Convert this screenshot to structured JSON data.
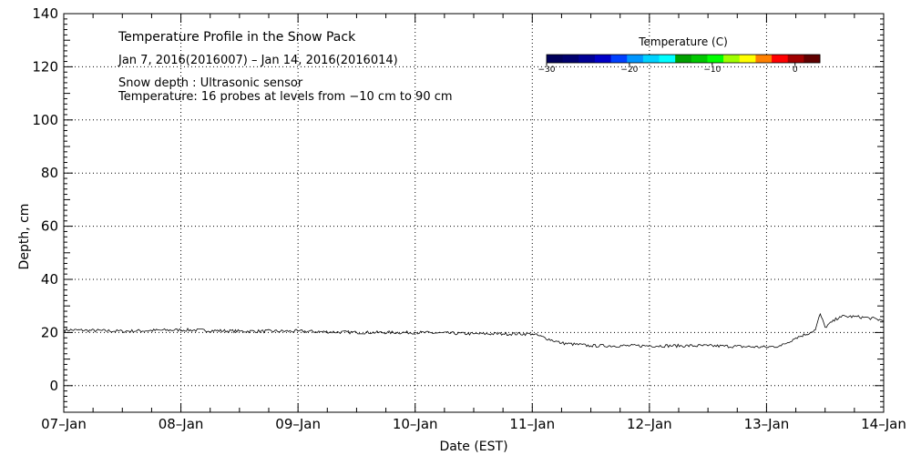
{
  "chart_data": {
    "type": "line",
    "title": "Temperature Profile in the Snow Pack",
    "subtitle": "Jan  7, 2016(2016007) – Jan 14, 2016(2016014)",
    "notes": [
      "Snow depth : Ultrasonic sensor",
      "Temperature: 16 probes at levels from −10 cm to 90 cm"
    ],
    "xlabel": "Date (EST)",
    "ylabel": "Depth, cm",
    "xlim": [
      "2016-01-07",
      "2016-01-14"
    ],
    "ylim": [
      -10,
      140
    ],
    "x_ticks": [
      "07–Jan",
      "08–Jan",
      "09–Jan",
      "10–Jan",
      "11–Jan",
      "12–Jan",
      "13–Jan",
      "14–Jan"
    ],
    "y_ticks": [
      "0",
      "20",
      "40",
      "60",
      "80",
      "100",
      "120",
      "140"
    ],
    "y_tick_values": [
      0,
      20,
      40,
      60,
      80,
      100,
      120,
      140
    ],
    "grid": true,
    "series": [
      {
        "x": [
          "2016-01-07 00:00",
          "2016-01-07 12:00",
          "2016-01-08 00:00",
          "2016-01-08 12:00",
          "2016-01-09 00:00",
          "2016-01-09 12:00",
          "2016-01-10 00:00",
          "2016-01-10 12:00",
          "2016-01-10 18:00",
          "2016-01-11 00:00",
          "2016-01-11 06:00",
          "2016-01-11 12:00",
          "2016-01-12 00:00",
          "2016-01-12 12:00",
          "2016-01-13 00:00",
          "2016-01-13 03:00",
          "2016-01-13 06:00",
          "2016-01-13 09:00",
          "2016-01-13 10:00",
          "2016-01-13 11:00",
          "2016-01-13 12:00",
          "2016-01-13 15:00",
          "2016-01-13 18:00",
          "2016-01-13 21:00",
          "2016-01-14 00:00"
        ],
        "y": [
          21,
          20.5,
          21,
          20.5,
          20.5,
          20,
          20,
          19.5,
          19.5,
          19.5,
          16,
          15,
          15,
          15,
          14.5,
          15,
          18,
          20,
          21,
          27,
          22,
          26,
          26,
          25.5,
          24.5
        ],
        "color": "#000000"
      }
    ],
    "colorbar": {
      "title": "Temperature (C)",
      "range": [
        -30,
        3
      ],
      "ticks": [
        "−30",
        "−20",
        "−10",
        "0"
      ],
      "tick_values": [
        -30,
        -20,
        -10,
        0
      ],
      "colors": [
        "#00005a",
        "#00006e",
        "#000096",
        "#0000c8",
        "#0040ff",
        "#0096ff",
        "#00d2ff",
        "#00ffff",
        "#00a000",
        "#00c800",
        "#00ff00",
        "#a0ff00",
        "#ffff00",
        "#ff8000",
        "#ff0000",
        "#a00000",
        "#600000"
      ]
    }
  }
}
